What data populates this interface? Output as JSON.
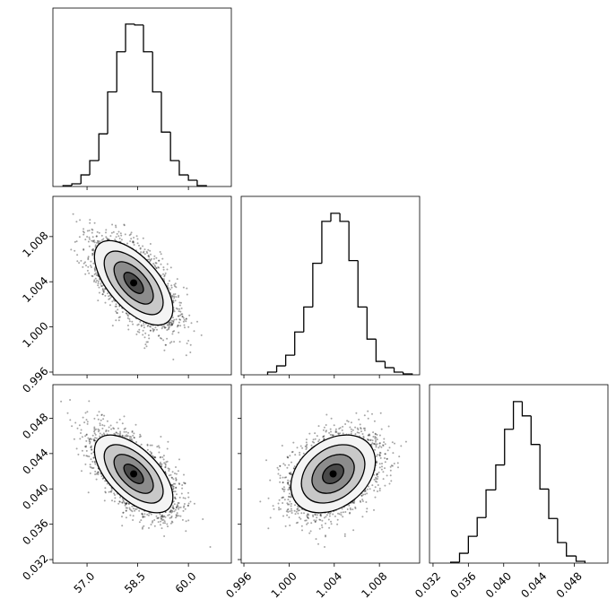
{
  "chart_data": {
    "type": "corner",
    "color": "#000000",
    "levels": [
      0.5,
      1,
      1.5,
      2
    ],
    "params": [
      {
        "lim": [
          55.99,
          61.27
        ],
        "ticks": [
          {
            "value": 57,
            "label": "57.0"
          },
          58.5,
          {
            "value": 60,
            "label": "60.0"
          }
        ],
        "mean": 58.38,
        "sigma": 0.58,
        "hist_ylim": [
          0,
          200
        ],
        "bins": [
          56.29,
          56.55,
          56.82,
          57.08,
          57.35,
          57.61,
          57.88,
          58.14,
          58.41,
          58.67,
          58.94,
          59.2,
          59.47,
          59.73,
          60.0,
          60.26,
          60.53
        ],
        "counts": [
          1,
          3,
          13,
          29,
          59,
          106,
          151,
          182,
          181,
          151,
          106,
          61,
          29,
          13,
          7,
          1
        ]
      },
      {
        "lim": [
          0.99576,
          1.01156
        ],
        "ticks": [
          0.996,
          {
            "value": 1.0,
            "label": "1.000"
          },
          1.004,
          1.008
        ],
        "mean": 1.0039,
        "sigma": 0.00187,
        "hist_ylim": [
          0,
          200
        ],
        "bins": [
          0.9981,
          0.9989,
          0.9997,
          1.0005,
          1.0013,
          1.0021,
          1.0029,
          1.0037,
          1.0045,
          1.0053,
          1.0061,
          1.0069,
          1.0077,
          1.0085,
          1.0093,
          1.0101,
          1.0109
        ],
        "counts": [
          3,
          10,
          22,
          48,
          76,
          125,
          172,
          181,
          172,
          128,
          76,
          40,
          15,
          8,
          3,
          1
        ]
      },
      {
        "lim": [
          0.0316,
          0.0518
        ],
        "ticks": [
          0.032,
          0.036,
          {
            "value": 0.04,
            "label": "0.040"
          },
          0.044,
          0.048
        ],
        "mean": 0.0417,
        "sigma": 0.0022,
        "hist_ylim": [
          0,
          200
        ],
        "bins": [
          0.034,
          0.035,
          0.036,
          0.037,
          0.038,
          0.0391,
          0.0401,
          0.0411,
          0.0421,
          0.0431,
          0.0441,
          0.0451,
          0.0461,
          0.0471,
          0.0482,
          0.0492
        ],
        "counts": [
          1,
          11,
          30,
          51,
          82,
          110,
          150,
          181,
          165,
          133,
          83,
          50,
          23,
          8,
          2
        ]
      }
    ],
    "pairs": [
      {
        "x": 0,
        "y": 1,
        "correlation": -0.62
      },
      {
        "x": 0,
        "y": 2,
        "correlation": -0.6
      },
      {
        "x": 1,
        "y": 2,
        "correlation": 0.32
      }
    ]
  }
}
